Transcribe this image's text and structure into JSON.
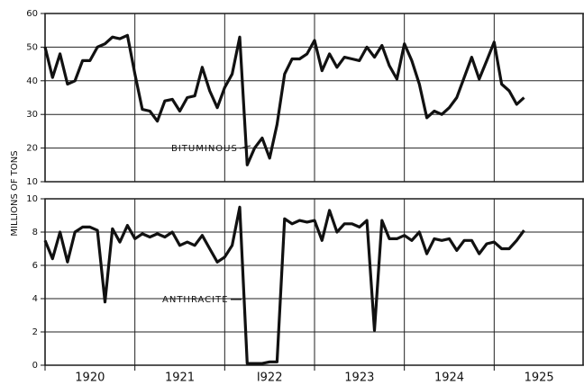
{
  "chart_data": [
    {
      "type": "line",
      "ylabel": "MILLIONS OF TONS",
      "annotation": "BITUMINOUS",
      "xlim": [
        1920,
        1926
      ],
      "ylim": [
        10,
        60
      ],
      "yticks": [
        10,
        20,
        30,
        40,
        50,
        60
      ],
      "grid": true,
      "x": [
        1920,
        1920.083,
        1920.167,
        1920.25,
        1920.333,
        1920.417,
        1920.5,
        1920.583,
        1920.667,
        1920.75,
        1920.833,
        1920.917,
        1921,
        1921.083,
        1921.167,
        1921.25,
        1921.333,
        1921.417,
        1921.5,
        1921.583,
        1921.667,
        1921.75,
        1921.833,
        1921.917,
        1922,
        1922.083,
        1922.167,
        1922.25,
        1922.333,
        1922.417,
        1922.5,
        1922.583,
        1922.667,
        1922.75,
        1922.833,
        1922.917,
        1923,
        1923.083,
        1923.167,
        1923.25,
        1923.333,
        1923.417,
        1923.5,
        1923.583,
        1923.667,
        1923.75,
        1923.833,
        1923.917,
        1924,
        1924.083,
        1924.167,
        1924.25,
        1924.333,
        1924.417,
        1924.5,
        1924.583,
        1924.667,
        1924.75,
        1924.833,
        1924.917,
        1925,
        1925.083,
        1925.167,
        1925.25,
        1925.333
      ],
      "series": [
        {
          "name": "Bituminous",
          "color": "#111111",
          "values": [
            50,
            41,
            48,
            39,
            40,
            46,
            46,
            50,
            51,
            53,
            52.5,
            53.5,
            42,
            31.5,
            31,
            28,
            34,
            34.5,
            31,
            35,
            35.5,
            44,
            37,
            32,
            38,
            42,
            53,
            15,
            20,
            23,
            17,
            27,
            42,
            46.5,
            46.5,
            48,
            52,
            43,
            48,
            44,
            47,
            46.5,
            46,
            50,
            47,
            50.5,
            44.5,
            40.5,
            51,
            46,
            39,
            29,
            31,
            30,
            32,
            35,
            41,
            47,
            40.5,
            46,
            51.5,
            39,
            37,
            33,
            35
          ]
        }
      ]
    },
    {
      "type": "line",
      "annotation": "ANTHRACITE",
      "xlim": [
        1920,
        1926
      ],
      "ylim": [
        0,
        10
      ],
      "yticks": [
        0,
        2,
        4,
        6,
        8,
        10
      ],
      "grid": true,
      "xticks": [
        {
          "value": 1920,
          "label": "1920"
        },
        {
          "value": 1921,
          "label": "1921"
        },
        {
          "value": 1922,
          "label": "I922"
        },
        {
          "value": 1923,
          "label": "1923"
        },
        {
          "value": 1924,
          "label": "1924"
        },
        {
          "value": 1925,
          "label": "1925"
        }
      ],
      "x": [
        1920,
        1920.083,
        1920.167,
        1920.25,
        1920.333,
        1920.417,
        1920.5,
        1920.583,
        1920.667,
        1920.75,
        1920.833,
        1920.917,
        1921,
        1921.083,
        1921.167,
        1921.25,
        1921.333,
        1921.417,
        1921.5,
        1921.583,
        1921.667,
        1921.75,
        1921.833,
        1921.917,
        1922,
        1922.083,
        1922.167,
        1922.25,
        1922.333,
        1922.417,
        1922.5,
        1922.583,
        1922.667,
        1922.75,
        1922.833,
        1922.917,
        1923,
        1923.083,
        1923.167,
        1923.25,
        1923.333,
        1923.417,
        1923.5,
        1923.583,
        1923.667,
        1923.75,
        1923.833,
        1923.917,
        1924,
        1924.083,
        1924.167,
        1924.25,
        1924.333,
        1924.417,
        1924.5,
        1924.583,
        1924.667,
        1924.75,
        1924.833,
        1924.917,
        1925,
        1925.083,
        1925.167,
        1925.25,
        1925.333
      ],
      "series": [
        {
          "name": "Anthracite",
          "color": "#111111",
          "values": [
            7.5,
            6.4,
            8.0,
            6.2,
            8.0,
            8.3,
            8.3,
            8.1,
            3.8,
            8.2,
            7.4,
            8.4,
            7.6,
            7.9,
            7.7,
            7.9,
            7.7,
            8.0,
            7.2,
            7.4,
            7.2,
            7.8,
            7.0,
            6.2,
            6.5,
            7.2,
            9.5,
            0.1,
            0.1,
            0.1,
            0.2,
            0.2,
            8.8,
            8.5,
            8.7,
            8.6,
            8.7,
            7.5,
            9.3,
            8.0,
            8.5,
            8.5,
            8.3,
            8.7,
            2.1,
            8.7,
            7.6,
            7.6,
            7.8,
            7.5,
            8.0,
            6.7,
            7.6,
            7.5,
            7.6,
            6.9,
            7.5,
            7.5,
            6.7,
            7.3,
            7.4,
            7.0,
            7.0,
            7.5,
            8.1
          ]
        }
      ]
    }
  ]
}
